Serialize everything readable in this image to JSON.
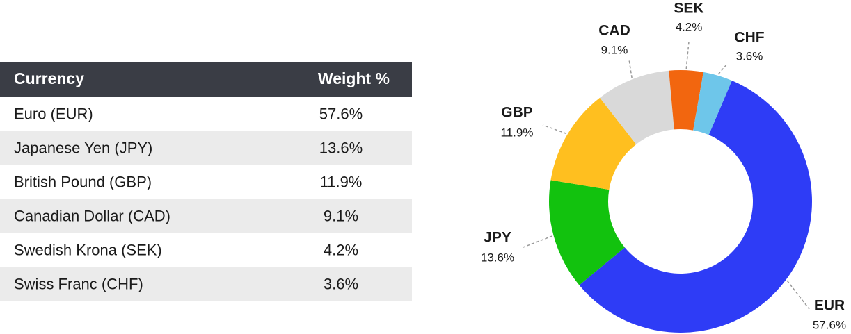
{
  "table": {
    "header": [
      "Currency",
      "Weight %"
    ],
    "rows": [
      [
        "Euro (EUR)",
        "57.6%"
      ],
      [
        "Japanese Yen (JPY)",
        "13.6%"
      ],
      [
        "British Pound (GBP)",
        "11.9%"
      ],
      [
        "Canadian Dollar (CAD)",
        "9.1%"
      ],
      [
        "Swedish Krona (SEK)",
        "4.2%"
      ],
      [
        "Swiss Franc (CHF)",
        "3.6%"
      ]
    ]
  },
  "chart_data": {
    "type": "pie",
    "categories": [
      "EUR",
      "JPY",
      "GBP",
      "CAD",
      "SEK",
      "CHF"
    ],
    "values": [
      57.6,
      13.6,
      11.9,
      9.1,
      4.2,
      3.6
    ],
    "value_labels": [
      "57.6%",
      "13.6%",
      "11.9%",
      "9.1%",
      "4.2%",
      "3.6%"
    ],
    "colors": [
      "#2e3cf6",
      "#12c20e",
      "#ffbf1f",
      "#d9d9d9",
      "#f2660f",
      "#6ec6ea"
    ]
  }
}
